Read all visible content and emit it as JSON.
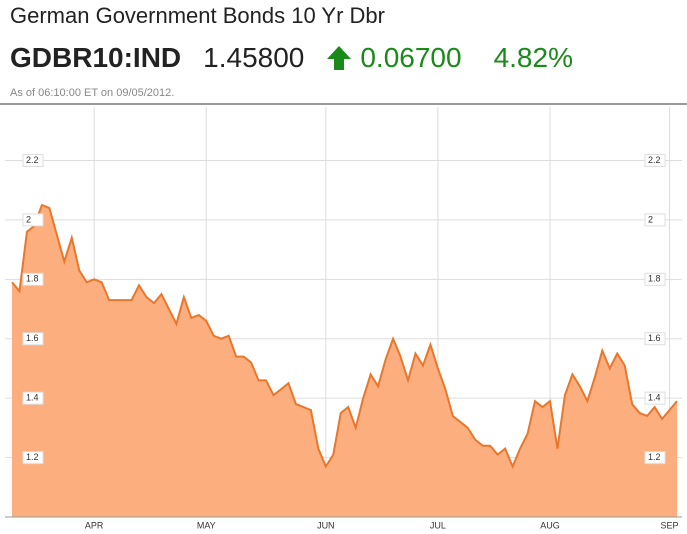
{
  "header": {
    "title": "German Government Bonds 10 Yr Dbr",
    "symbol": "GDBR10:IND",
    "price": "1.45800",
    "change": "0.06700",
    "change_percent": "4.82%",
    "timestamp": "As of 06:10:00 ET on 09/05/2012."
  },
  "chart_data": {
    "type": "area",
    "categories": [
      null,
      null,
      null,
      null,
      null,
      null,
      null,
      null,
      null,
      null,
      null,
      "APR",
      null,
      null,
      null,
      null,
      null,
      null,
      null,
      null,
      null,
      null,
      null,
      null,
      null,
      null,
      "MAY",
      null,
      null,
      null,
      null,
      null,
      null,
      null,
      null,
      null,
      null,
      null,
      null,
      null,
      null,
      null,
      "JUN",
      null,
      null,
      null,
      null,
      null,
      null,
      null,
      null,
      null,
      null,
      null,
      null,
      null,
      null,
      "JUL",
      null,
      null,
      null,
      null,
      null,
      null,
      null,
      null,
      null,
      null,
      null,
      null,
      null,
      null,
      "AUG",
      null,
      null,
      null,
      null,
      null,
      null,
      null,
      null,
      null,
      null,
      null,
      null,
      null,
      null,
      null,
      "SEP",
      null
    ],
    "values": [
      1.79,
      1.76,
      1.96,
      1.98,
      2.05,
      2.04,
      1.95,
      1.86,
      1.94,
      1.83,
      1.79,
      1.8,
      1.79,
      1.73,
      1.73,
      1.73,
      1.73,
      1.78,
      1.74,
      1.72,
      1.75,
      1.7,
      1.65,
      1.74,
      1.67,
      1.68,
      1.66,
      1.61,
      1.6,
      1.61,
      1.54,
      1.54,
      1.52,
      1.46,
      1.46,
      1.41,
      1.43,
      1.45,
      1.38,
      1.37,
      1.36,
      1.23,
      1.17,
      1.21,
      1.35,
      1.37,
      1.3,
      1.4,
      1.48,
      1.44,
      1.53,
      1.6,
      1.54,
      1.46,
      1.55,
      1.51,
      1.58,
      1.5,
      1.43,
      1.34,
      1.32,
      1.3,
      1.26,
      1.24,
      1.24,
      1.21,
      1.23,
      1.17,
      1.23,
      1.28,
      1.39,
      1.37,
      1.39,
      1.23,
      1.41,
      1.48,
      1.44,
      1.39,
      1.47,
      1.56,
      1.5,
      1.55,
      1.51,
      1.38,
      1.35,
      1.34,
      1.37,
      1.33,
      1.36,
      1.39
    ],
    "color": "#e8772e",
    "fill_color": "#fdae7e",
    "ylim": [
      1,
      2.38
    ],
    "yticks": [
      1.2,
      1.4,
      1.6,
      1.8,
      2,
      2.2
    ],
    "y2lim": [
      1,
      2.38
    ],
    "y2ticks": [
      1.2,
      1.4,
      1.6,
      1.8,
      2,
      2.2
    ],
    "grid": true
  }
}
